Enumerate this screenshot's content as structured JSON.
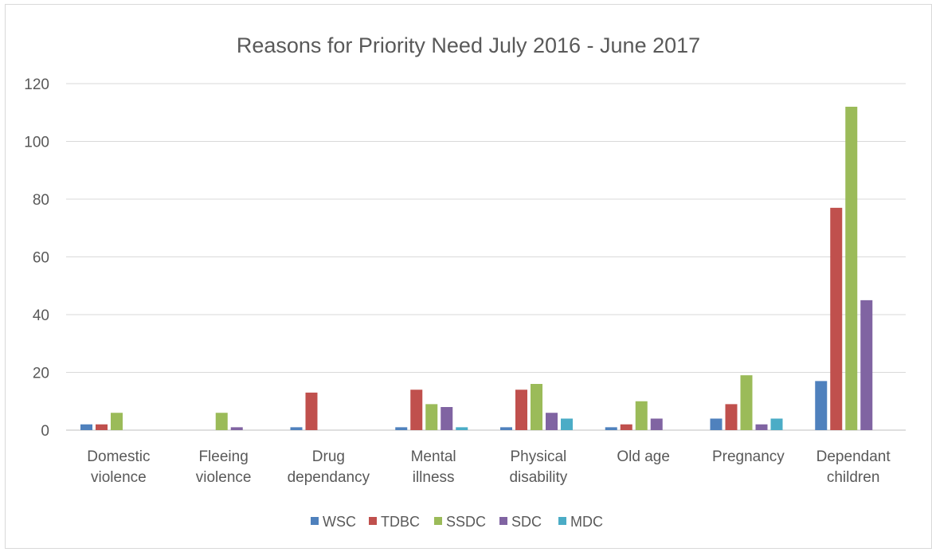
{
  "chart_data": {
    "type": "bar",
    "title": "Reasons for Priority Need July 2016 - June 2017",
    "categories": [
      [
        "Domestic",
        "violence"
      ],
      [
        "Fleeing",
        "violence"
      ],
      [
        "Drug",
        "dependancy"
      ],
      [
        "Mental",
        "illness"
      ],
      [
        "Physical",
        "disability"
      ],
      [
        "Old age"
      ],
      [
        "Pregnancy"
      ],
      [
        "Dependant",
        "children"
      ]
    ],
    "series": [
      {
        "name": "WSC",
        "color": "#4f81bd",
        "values": [
          2,
          0,
          1,
          1,
          1,
          1,
          4,
          17
        ]
      },
      {
        "name": "TDBC",
        "color": "#c0504d",
        "values": [
          2,
          0,
          13,
          14,
          14,
          2,
          9,
          77
        ]
      },
      {
        "name": "SSDC",
        "color": "#9bbb59",
        "values": [
          6,
          6,
          0,
          9,
          16,
          10,
          19,
          112
        ]
      },
      {
        "name": "SDC",
        "color": "#8064a2",
        "values": [
          0,
          1,
          0,
          8,
          6,
          4,
          2,
          45
        ]
      },
      {
        "name": "MDC",
        "color": "#4bacc6",
        "values": [
          0,
          0,
          0,
          1,
          4,
          0,
          4,
          0
        ]
      }
    ],
    "ylim": [
      0,
      120
    ],
    "yticks": [
      0,
      20,
      40,
      60,
      80,
      100,
      120
    ],
    "grid": true,
    "legend": "bottom",
    "xlabel": "",
    "ylabel": ""
  }
}
